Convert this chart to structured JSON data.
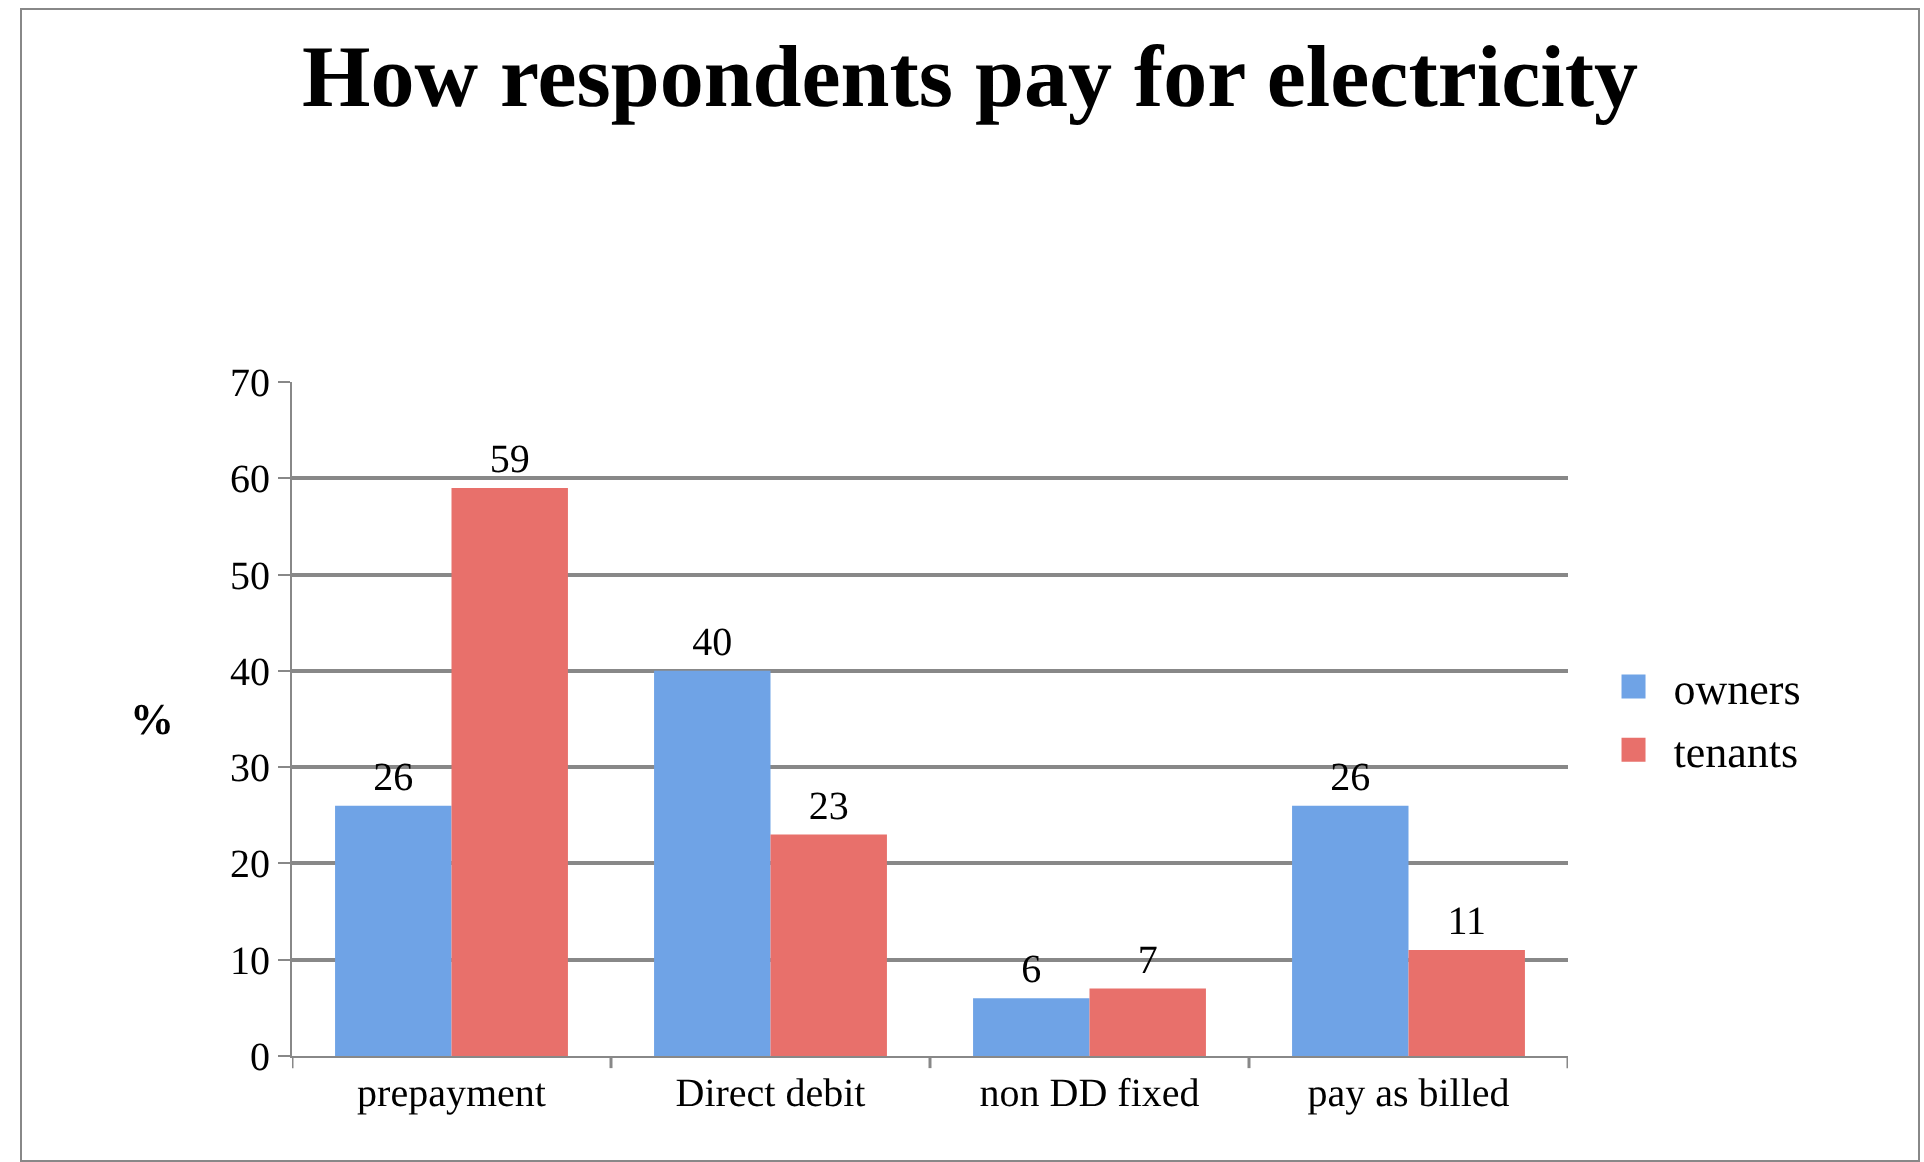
{
  "chart_data": {
    "type": "bar",
    "title": "How respondents pay for electricity",
    "ylabel": "%",
    "categories": [
      "prepayment",
      "Direct debit",
      "non DD fixed",
      "pay as billed"
    ],
    "series": [
      {
        "name": "owners",
        "color": "#6fa3e6",
        "values": [
          26,
          40,
          6,
          26
        ]
      },
      {
        "name": "tenants",
        "color": "#e8706b",
        "values": [
          59,
          23,
          7,
          11
        ]
      }
    ],
    "ylim": [
      0,
      70
    ],
    "yticks": [
      0,
      10,
      20,
      30,
      40,
      50,
      60,
      70
    ],
    "grid": "y",
    "legend": "right",
    "data_labels": true
  }
}
